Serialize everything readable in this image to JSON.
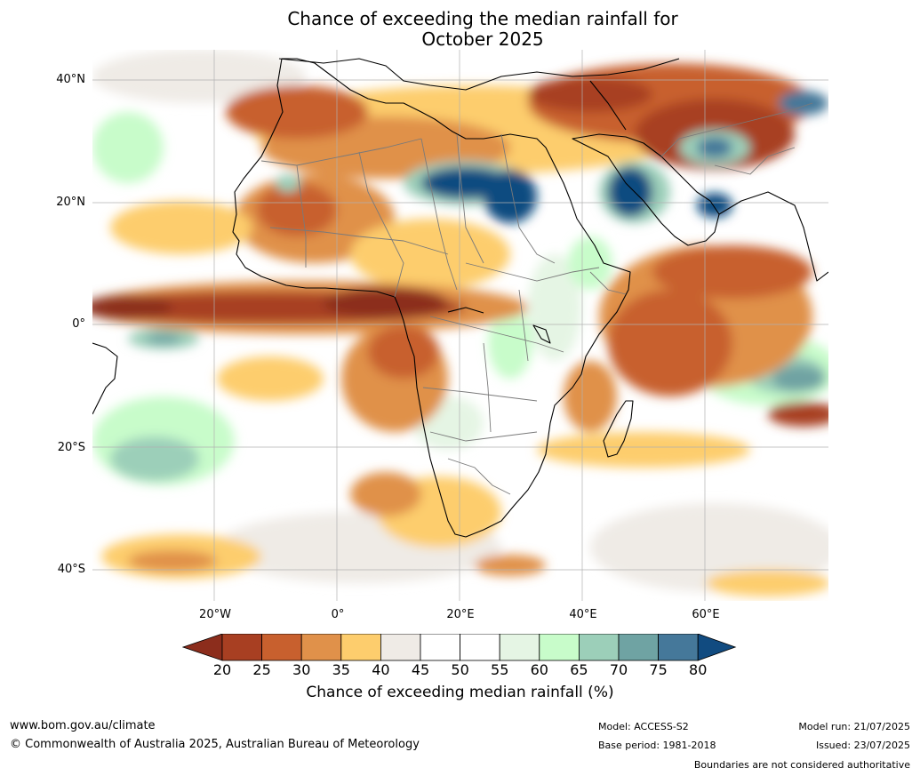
{
  "title_line1": "Chance of exceeding the median rainfall for",
  "title_line2": "October 2025",
  "lat_labels": [
    "40°N",
    "20°N",
    "0°",
    "20°S",
    "40°S"
  ],
  "lon_labels": [
    "20°W",
    "0°",
    "20°E",
    "40°E",
    "60°E"
  ],
  "colorbar": {
    "ticks": [
      "20",
      "25",
      "30",
      "35",
      "40",
      "45",
      "50",
      "55",
      "60",
      "65",
      "70",
      "75",
      "80"
    ],
    "colors": [
      "#8c2d1c",
      "#a83f22",
      "#c8602e",
      "#e0914a",
      "#fdcd6d",
      "#efebe6",
      "#ffffff",
      "#ffffff",
      "#e5f5e4",
      "#c8fcca",
      "#9ccfb9",
      "#6fa3a3",
      "#45789a",
      "#114b80"
    ],
    "label": "Chance of exceeding median rainfall (%)"
  },
  "footer": {
    "url": "www.bom.gov.au/climate",
    "copyright": "© Commonwealth of Australia 2025, Australian Bureau of Meteorology",
    "model": "Model: ACCESS-S2",
    "base_period": "Base period: 1981-2018",
    "model_run": "Model run: 21/07/2025",
    "issued": "Issued: 23/07/2025",
    "disclaimer": "Boundaries are not considered authoritative"
  }
}
